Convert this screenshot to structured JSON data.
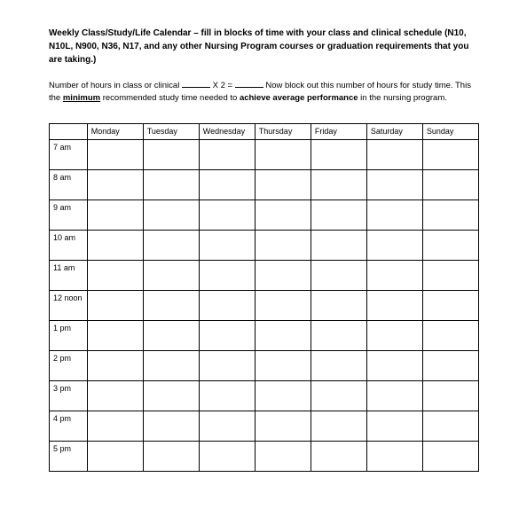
{
  "title": "Weekly Class/Study/Life Calendar – fill in blocks of time with your class and clinical schedule (N10, N10L, N900, N36, N17, and any other Nursing Program courses or graduation requirements that you are taking.)",
  "instructions_pre": "Number of hours in class or clinical ",
  "instructions_mid1": " X 2 = ",
  "instructions_mid2": "   Now block out this number of hours for study time. This the ",
  "instructions_minimum": "minimum",
  "instructions_mid3": " recommended study time needed to ",
  "instructions_achieve": "achieve average performance",
  "instructions_end": " in the nursing program.",
  "days": [
    "Monday",
    "Tuesday",
    "Wednesday",
    "Thursday",
    "Friday",
    "Saturday",
    "Sunday"
  ],
  "times": [
    "7 am",
    "8 am",
    "9 am",
    "10 am",
    "11 am",
    "12 noon",
    "1 pm",
    "2 pm",
    "3 pm",
    "4 pm",
    "5 pm"
  ]
}
